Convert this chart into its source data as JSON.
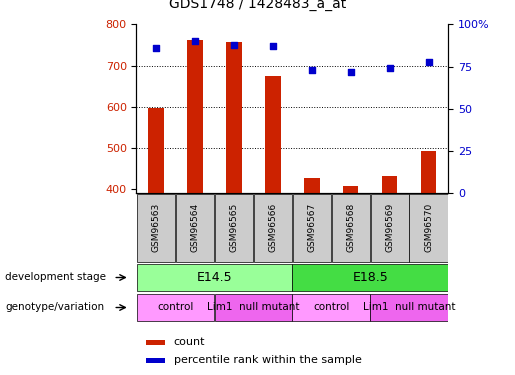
{
  "title": "GDS1748 / 1428483_a_at",
  "samples": [
    "GSM96563",
    "GSM96564",
    "GSM96565",
    "GSM96566",
    "GSM96567",
    "GSM96568",
    "GSM96569",
    "GSM96570"
  ],
  "count_values": [
    597,
    762,
    757,
    675,
    427,
    408,
    432,
    492
  ],
  "percentile_values": [
    86,
    90,
    88,
    87,
    73,
    72,
    74,
    78
  ],
  "ylim_left": [
    390,
    800
  ],
  "ylim_right": [
    0,
    100
  ],
  "yticks_left": [
    400,
    500,
    600,
    700,
    800
  ],
  "yticks_right": [
    0,
    25,
    50,
    75,
    100
  ],
  "bar_color": "#cc2200",
  "dot_color": "#0000cc",
  "bar_width": 0.4,
  "development_stages": [
    {
      "label": "E14.5",
      "start": 0,
      "end": 4,
      "color": "#99ff99"
    },
    {
      "label": "E18.5",
      "start": 4,
      "end": 8,
      "color": "#44dd44"
    }
  ],
  "genotype_groups": [
    {
      "label": "control",
      "start": 0,
      "end": 2,
      "color": "#ff99ff"
    },
    {
      "label": "Lim1  null mutant",
      "start": 2,
      "end": 4,
      "color": "#ee66ee"
    },
    {
      "label": "control",
      "start": 4,
      "end": 6,
      "color": "#ff99ff"
    },
    {
      "label": "Lim1  null mutant",
      "start": 6,
      "end": 8,
      "color": "#ee66ee"
    }
  ],
  "left_label_color": "#cc2200",
  "right_label_color": "#0000cc",
  "sample_box_color": "#cccccc",
  "dev_stage_label": "development stage",
  "geno_label": "genotype/variation",
  "legend_count_label": "count",
  "legend_pct_label": "percentile rank within the sample"
}
